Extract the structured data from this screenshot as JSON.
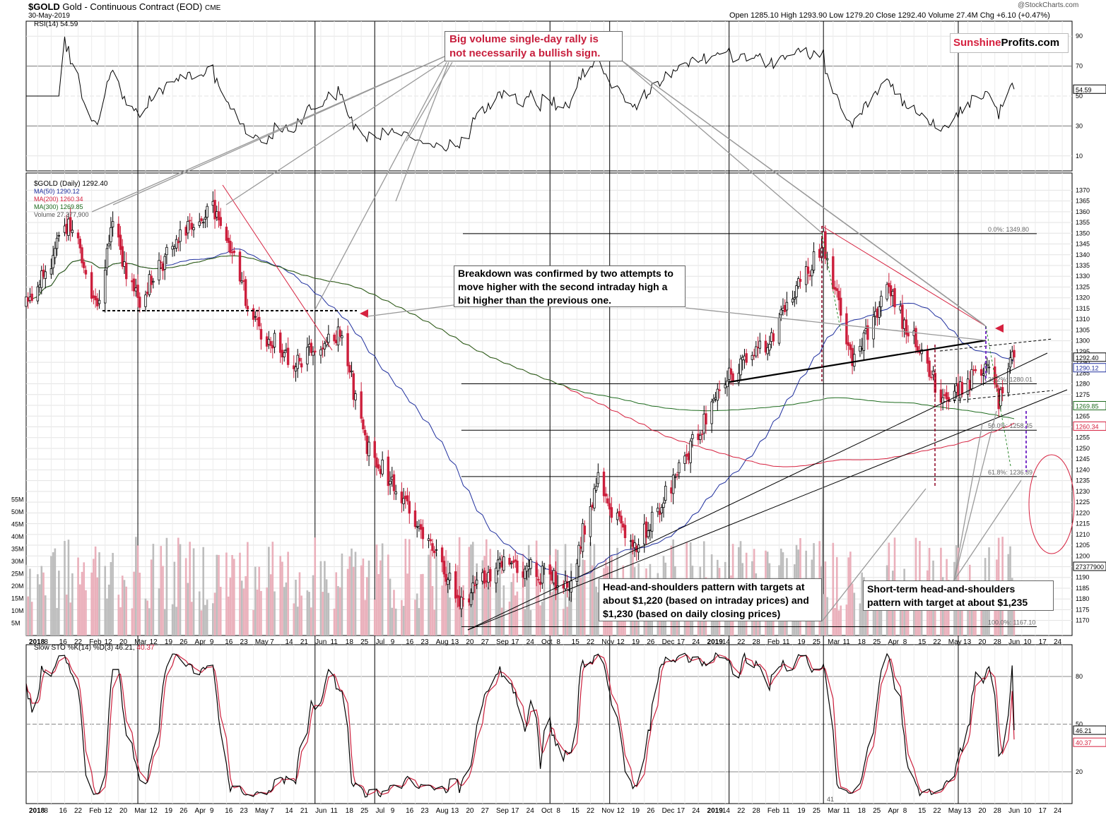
{
  "header": {
    "symbol": "$GOLD",
    "description": "Gold - Continuous Contract (EOD)",
    "exchange": "CME",
    "date": "30-May-2019",
    "ohlc": "Open 1285.10  High 1293.90  Low 1279.20  Close 1292.40  Volume 27.4M  Chg +6.10 (+0.47%)",
    "watermark": "@StockCharts.com"
  },
  "logo": {
    "part1": "Sunshine",
    "part2": "Profits.com"
  },
  "legend": {
    "rsi": "RSI(14) 54.59",
    "price": "$GOLD (Daily) 1292.40",
    "ma50": "MA(50) 1290.12",
    "ma200": "MA(200) 1260.34",
    "ma300": "MA(300) 1269.85",
    "volume": "Volume 27,377,900",
    "sto_main": "Slow STO %K(14) %D(3) 46.21,",
    "sto_d": "40.37"
  },
  "annotations": {
    "big_volume": "Big volume single-day rally is not necessarily a bullish sign.",
    "breakdown": "Breakdown was confirmed by two attempts to move higher with the second intraday high a bit higher than the previous one.",
    "hs_main": "Head-and-shoulders pattern with targets at about $1,220 (based on intraday prices) and $1,230 (based on daily closing prices)",
    "hs_short": "Short-term head-and-shoulders pattern with target at about $1,235"
  },
  "fib_labels": [
    "0.0%: 1349.80",
    "38.2%: 1280.01",
    "50.0%: 1258.45",
    "61.8%: 1236.89",
    "100.0%: 1167.10"
  ],
  "value_tags": {
    "rsi": "54.59",
    "close": "1292.40",
    "ma50": "1290.12",
    "ma300": "1269.85",
    "ma200": "1260.34",
    "volume": "27377900",
    "k": "46.21",
    "d": "40.37",
    "bar_count": "41"
  },
  "colors": {
    "up": "#999999",
    "down": "#cc1f3c",
    "ma50": "#1f2f9e",
    "ma200": "#d6213f",
    "ma300": "#1e6b1e",
    "annotation_red": "#c8203e",
    "logo_red": "#d6213f"
  },
  "chart_data": [
    {
      "type": "line",
      "title": "RSI(14)",
      "series": [
        {
          "name": "RSI(14)",
          "last": 54.59
        }
      ],
      "y_ticks": [
        "90",
        "70",
        "50",
        "30",
        "10"
      ],
      "ylim": [
        0,
        100
      ]
    },
    {
      "type": "candlestick",
      "title": "$GOLD (Daily)",
      "ylim": [
        1163,
        1378
      ],
      "y_ticks": [
        "1370",
        "1365",
        "1360",
        "1355",
        "1350",
        "1345",
        "1340",
        "1335",
        "1330",
        "1325",
        "1320",
        "1315",
        "1310",
        "1305",
        "1300",
        "1295",
        "1290",
        "1285",
        "1280",
        "1275",
        "1270",
        "1265",
        "1260",
        "1255",
        "1250",
        "1245",
        "1240",
        "1235",
        "1230",
        "1225",
        "1220",
        "1215",
        "1210",
        "1205",
        "1200",
        "1195",
        "1190",
        "1185",
        "1180",
        "1175",
        "1170"
      ],
      "volume_ticks": [
        "55M",
        "50M",
        "45M",
        "40M",
        "35M",
        "30M",
        "25M",
        "20M",
        "15M",
        "10M",
        "5M"
      ],
      "x_labels": [
        "2018",
        "8",
        "16",
        "22",
        "Feb",
        "12",
        "20",
        "Mar",
        "12",
        "19",
        "26",
        "Apr",
        "9",
        "16",
        "23",
        "May",
        "7",
        "14",
        "21",
        "Jun",
        "11",
        "18",
        "25",
        "Jul",
        "9",
        "16",
        "23",
        "Aug",
        "13",
        "20",
        "27",
        "Sep",
        "17",
        "24",
        "Oct",
        "8",
        "15",
        "22",
        "Nov",
        "12",
        "19",
        "26",
        "Dec",
        "17",
        "24",
        "2019",
        "14",
        "22",
        "28",
        "Feb",
        "11",
        "19",
        "25",
        "Mar",
        "11",
        "18",
        "25",
        "Apr",
        "8",
        "15",
        "22",
        "May",
        "13",
        "20",
        "28",
        "Jun",
        "10",
        "17",
        "24"
      ],
      "anchors": [
        {
          "date": "2018-01-02",
          "close": 1316
        },
        {
          "date": "2018-01-25",
          "close": 1355
        },
        {
          "date": "2018-02-08",
          "close": 1315
        },
        {
          "date": "2018-02-15",
          "close": 1355
        },
        {
          "date": "2018-03-01",
          "close": 1317
        },
        {
          "date": "2018-03-23",
          "close": 1350
        },
        {
          "date": "2018-04-11",
          "close": 1362
        },
        {
          "date": "2018-05-01",
          "close": 1307
        },
        {
          "date": "2018-05-21",
          "close": 1290
        },
        {
          "date": "2018-06-14",
          "close": 1305
        },
        {
          "date": "2018-06-28",
          "close": 1250
        },
        {
          "date": "2018-07-19",
          "close": 1225
        },
        {
          "date": "2018-08-16",
          "close": 1178
        },
        {
          "date": "2018-09-07",
          "close": 1199
        },
        {
          "date": "2018-10-10",
          "close": 1186
        },
        {
          "date": "2018-10-26",
          "close": 1235
        },
        {
          "date": "2018-11-13",
          "close": 1202
        },
        {
          "date": "2018-12-03",
          "close": 1232
        },
        {
          "date": "2018-12-31",
          "close": 1282
        },
        {
          "date": "2019-01-25",
          "close": 1303
        },
        {
          "date": "2019-02-20",
          "close": 1346
        },
        {
          "date": "2019-03-07",
          "close": 1287
        },
        {
          "date": "2019-03-25",
          "close": 1324
        },
        {
          "date": "2019-04-23",
          "close": 1274
        },
        {
          "date": "2019-05-16",
          "close": 1286
        },
        {
          "date": "2019-05-22",
          "close": 1273
        },
        {
          "date": "2019-05-30",
          "close": 1292.4
        }
      ],
      "series": [
        {
          "name": "MA(50)",
          "last": 1290.12
        },
        {
          "name": "MA(200)",
          "last": 1260.34
        },
        {
          "name": "MA(300)",
          "last": 1269.85
        },
        {
          "name": "Volume",
          "last": 27377900
        }
      ],
      "fib_levels": [
        1349.8,
        1280.01,
        1258.45,
        1236.89,
        1167.1
      ]
    },
    {
      "type": "line",
      "title": "Slow STO %K(14) %D(3)",
      "series": [
        {
          "name": "%K",
          "last": 46.21
        },
        {
          "name": "%D",
          "last": 40.37
        }
      ],
      "y_ticks": [
        "80",
        "50",
        "20"
      ],
      "ylim": [
        0,
        100
      ]
    }
  ]
}
